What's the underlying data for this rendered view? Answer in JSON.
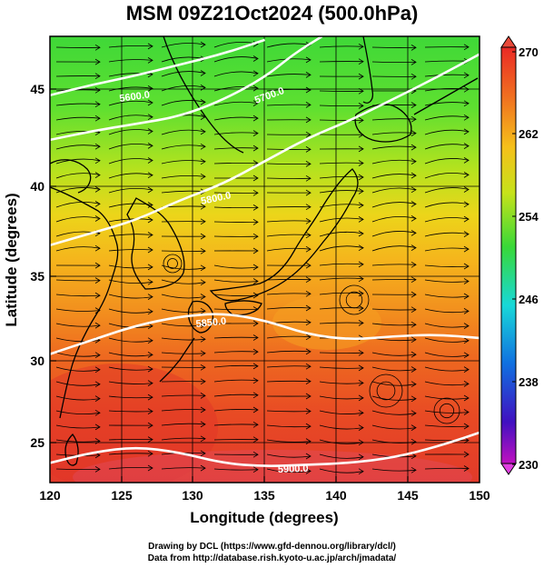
{
  "title": "MSM 09Z21Oct2024 (500.0hPa)",
  "axes": {
    "xlabel": "Longitude (degrees)",
    "ylabel": "Latitude  (degrees)",
    "x_ticks": [
      "120",
      "125",
      "130",
      "135",
      "140",
      "145",
      "150"
    ],
    "y_ticks": [
      "25",
      "30",
      "35",
      "40",
      "45"
    ],
    "xlim": [
      120,
      150
    ],
    "ylim": [
      22.5,
      47.5
    ]
  },
  "colorbar": {
    "labels": [
      "270",
      "262",
      "254",
      "246",
      "238",
      "230"
    ],
    "range": [
      230,
      270
    ]
  },
  "contours": [
    {
      "label": "5600.0"
    },
    {
      "label": "5700.0"
    },
    {
      "label": "5800.0"
    },
    {
      "label": "5850.0"
    },
    {
      "label": "5900.0"
    }
  ],
  "credits": {
    "line1": "Drawing by DCL (https://www.gfd-dennou.org/library/dcl/)",
    "line2": "Data from http://database.rish.kyoto-u.ac.jp/arch/jmadata/"
  },
  "chart_data": {
    "type": "heatmap",
    "title": "MSM 09Z21Oct2024 (500.0hPa)",
    "xlabel": "Longitude (degrees)",
    "ylabel": "Latitude  (degrees)",
    "xlim": [
      120,
      150
    ],
    "ylim": [
      22.5,
      47.5
    ],
    "colorbar_range": [
      230,
      270
    ],
    "colorbar_ticks": [
      270,
      262,
      254,
      246,
      238,
      230
    ],
    "temperature_profile": [
      {
        "lat": 47.5,
        "value": 256
      },
      {
        "lat": 44,
        "value": 257
      },
      {
        "lat": 40,
        "value": 258
      },
      {
        "lat": 37,
        "value": 260
      },
      {
        "lat": 35,
        "value": 262
      },
      {
        "lat": 32,
        "value": 263.5
      },
      {
        "lat": 30,
        "value": 265
      },
      {
        "lat": 27,
        "value": 266.5
      },
      {
        "lat": 25,
        "value": 267.5
      },
      {
        "lat": 22.5,
        "value": 268.5
      }
    ],
    "contour_levels": [
      5600,
      5700,
      5800,
      5850,
      5900
    ],
    "contour_lines": [
      {
        "level": 5600,
        "points": [
          [
            120,
            44.2
          ],
          [
            123,
            44.8
          ],
          [
            126,
            45.3
          ],
          [
            129,
            45.9
          ],
          [
            132,
            46.5
          ],
          [
            135,
            47.3
          ]
        ]
      },
      {
        "level": 5700,
        "points": [
          [
            120,
            41.7
          ],
          [
            123,
            42.2
          ],
          [
            126,
            42.6
          ],
          [
            129,
            43.0
          ],
          [
            132,
            43.9
          ],
          [
            135,
            45.2
          ],
          [
            137,
            46.5
          ],
          [
            139,
            47.5
          ]
        ]
      },
      {
        "level": 5800,
        "points": [
          [
            120,
            35.8
          ],
          [
            123,
            36.5
          ],
          [
            126,
            37.2
          ],
          [
            129,
            38.3
          ],
          [
            132,
            39.2
          ],
          [
            135,
            40.5
          ],
          [
            138,
            41.8
          ],
          [
            141,
            42.8
          ],
          [
            144,
            44.0
          ],
          [
            147,
            45.2
          ],
          [
            150,
            46.5
          ]
        ]
      },
      {
        "level": 5850,
        "points": [
          [
            120,
            29.7
          ],
          [
            123,
            30.5
          ],
          [
            126,
            31.3
          ],
          [
            129,
            31.8
          ],
          [
            132,
            32.0
          ],
          [
            135,
            31.6
          ],
          [
            138,
            30.8
          ],
          [
            141,
            30.5
          ],
          [
            144,
            30.7
          ],
          [
            147,
            30.8
          ],
          [
            150,
            30.6
          ]
        ]
      },
      {
        "level": 5900,
        "points": [
          [
            120,
            23.6
          ],
          [
            123,
            24.2
          ],
          [
            126,
            24.5
          ],
          [
            129,
            24.2
          ],
          [
            132,
            23.6
          ],
          [
            135,
            23.4
          ],
          [
            138,
            23.5
          ],
          [
            141,
            23.6
          ],
          [
            144,
            23.9
          ],
          [
            147,
            24.5
          ],
          [
            150,
            25.3
          ]
        ]
      }
    ]
  }
}
